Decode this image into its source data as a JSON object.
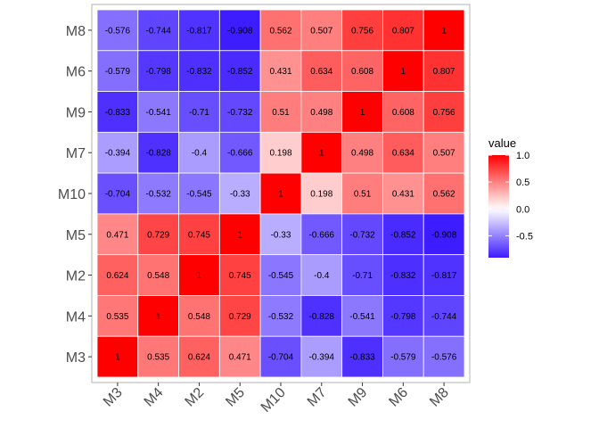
{
  "chart_data": {
    "type": "heatmap",
    "title": "",
    "xlabel": "",
    "ylabel": "",
    "columns": [
      "M3",
      "M4",
      "M2",
      "M5",
      "M10",
      "M7",
      "M9",
      "M6",
      "M8"
    ],
    "rows": [
      "M8",
      "M6",
      "M9",
      "M7",
      "M10",
      "M5",
      "M2",
      "M4",
      "M3"
    ],
    "values": [
      [
        -0.576,
        -0.744,
        -0.817,
        -0.908,
        0.562,
        0.507,
        0.756,
        0.807,
        1
      ],
      [
        -0.579,
        -0.798,
        -0.832,
        -0.852,
        0.431,
        0.634,
        0.608,
        1,
        0.807
      ],
      [
        -0.833,
        -0.541,
        -0.71,
        -0.732,
        0.51,
        0.498,
        1,
        0.608,
        0.756
      ],
      [
        -0.394,
        -0.828,
        -0.4,
        -0.666,
        0.198,
        1,
        0.498,
        0.634,
        0.507
      ],
      [
        -0.704,
        -0.532,
        -0.545,
        -0.33,
        1,
        0.198,
        0.51,
        0.431,
        0.562
      ],
      [
        0.471,
        0.729,
        0.745,
        1,
        -0.33,
        -0.666,
        -0.732,
        -0.852,
        -0.908
      ],
      [
        0.624,
        0.548,
        1,
        0.745,
        -0.545,
        -0.4,
        -0.71,
        -0.832,
        -0.817
      ],
      [
        0.535,
        1,
        0.548,
        0.729,
        -0.532,
        -0.828,
        -0.541,
        -0.798,
        -0.744
      ],
      [
        1,
        0.535,
        0.624,
        0.471,
        -0.704,
        -0.394,
        -0.833,
        -0.579,
        -0.576
      ]
    ],
    "labels": [
      [
        "-0.576",
        "-0.744",
        "-0.817",
        "-0.908",
        "0.562",
        "0.507",
        "0.756",
        "0.807",
        "1"
      ],
      [
        "-0.579",
        "-0.798",
        "-0.832",
        "-0.852",
        "0.431",
        "0.634",
        "0.608",
        "1",
        "0.807"
      ],
      [
        "-0.833",
        "-0.541",
        "-0.71",
        "-0.732",
        "0.51",
        "0.498",
        "1",
        "0.608",
        "0.756"
      ],
      [
        "-0.394",
        "-0.828",
        "-0.4",
        "-0.666",
        "0.198",
        "1",
        "0.498",
        "0.634",
        "0.507"
      ],
      [
        "-0.704",
        "-0.532",
        "-0.545",
        "-0.33",
        "1",
        "0.198",
        "0.51",
        "0.431",
        "0.562"
      ],
      [
        "0.471",
        "0.729",
        "0.745",
        "1",
        "-0.33",
        "-0.666",
        "-0.732",
        "-0.852",
        "-0.908"
      ],
      [
        "0.624",
        "0.548",
        "1",
        "0.745",
        "-0.545",
        "-0.4",
        "-0.71",
        "-0.832",
        "-0.817"
      ],
      [
        "0.535",
        "1",
        "0.548",
        "0.729",
        "-0.532",
        "-0.828",
        "-0.541",
        "-0.798",
        "-0.744"
      ],
      [
        "1",
        "0.535",
        "0.624",
        "0.471",
        "-0.704",
        "-0.394",
        "-0.833",
        "-0.579",
        "-0.576"
      ]
    ],
    "color_scale": {
      "low_color": "#3d1cff",
      "mid_color": "#ffffff",
      "high_color": "#ff0000",
      "domain_min": -0.908,
      "midpoint": 0,
      "domain_max": 1
    },
    "legend": {
      "title": "value",
      "position": "right",
      "ticks": [
        1.0,
        0.5,
        0.0,
        -0.5
      ],
      "tick_labels": [
        "1.0",
        "0.5",
        "0.0",
        "-0.5"
      ]
    },
    "colors": {
      "panel_border": "#b3b3b3",
      "cell_border": "#ffffff",
      "tick_text": "#4d4d4d",
      "cell_text": "#000000"
    }
  }
}
